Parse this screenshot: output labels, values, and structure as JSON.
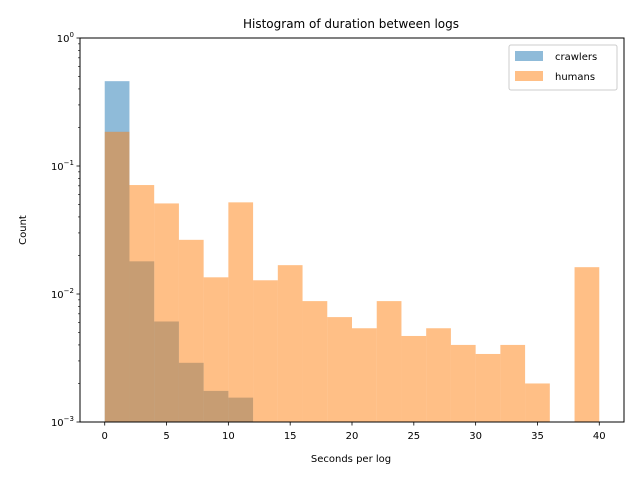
{
  "chart_data": {
    "type": "bar",
    "title": "Histogram of duration between logs",
    "xlabel": "Seconds per log",
    "ylabel": "Count",
    "x_scale": "linear",
    "y_scale": "log",
    "xlim": [
      -2,
      42
    ],
    "ylim": [
      0.001,
      1
    ],
    "x_ticks": [
      0,
      5,
      10,
      15,
      20,
      25,
      30,
      35,
      40
    ],
    "y_ticks": [
      {
        "value": 0.001,
        "base": "10",
        "exp": "−3"
      },
      {
        "value": 0.01,
        "base": "10",
        "exp": "−2"
      },
      {
        "value": 0.1,
        "base": "10",
        "exp": "−1"
      },
      {
        "value": 1,
        "base": "10",
        "exp": "0"
      }
    ],
    "bin_edges": [
      0,
      2,
      4,
      6,
      8,
      10,
      12,
      14,
      16,
      18,
      20,
      22,
      24,
      26,
      28,
      30,
      32,
      34,
      36,
      38,
      40
    ],
    "grid": false,
    "legend_position": "top-right",
    "series": [
      {
        "name": "crawlers",
        "color": "#1f77b4",
        "alpha": 0.5,
        "values": [
          0.46,
          0.018,
          0.0061,
          0.0029,
          0.00175,
          0.00155,
          0,
          0,
          0,
          0,
          0,
          0,
          0,
          0,
          0,
          0,
          0,
          0,
          0,
          0
        ]
      },
      {
        "name": "humans",
        "color": "#ff7f0e",
        "alpha": 0.5,
        "values": [
          0.185,
          0.071,
          0.051,
          0.0265,
          0.0135,
          0.052,
          0.0128,
          0.0168,
          0.0088,
          0.0066,
          0.0054,
          0.0088,
          0.0047,
          0.0054,
          0.004,
          0.0034,
          0.004,
          0.002,
          0,
          0.0162
        ]
      }
    ]
  }
}
